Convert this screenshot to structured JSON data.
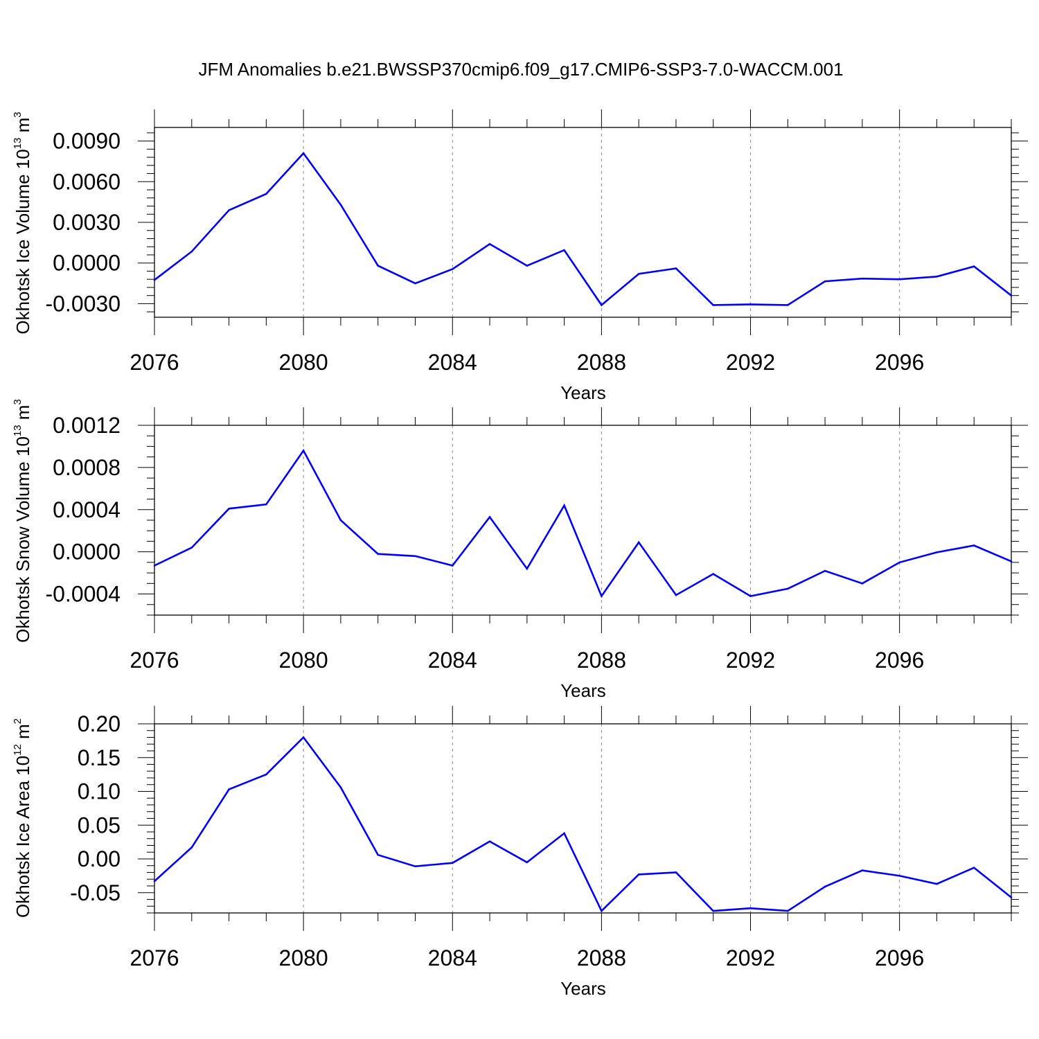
{
  "figure": {
    "title": "JFM Anomalies b.e21.BWSSP370cmip6.f09_g17.CMIP6-SSP3-7.0-WACCM.001"
  },
  "colors": {
    "line": "#0000ff",
    "axis": "#000000",
    "grid": "#888888",
    "background": "#ffffff"
  },
  "chart_data": [
    {
      "type": "line",
      "series_name": "Okhotsk Ice Volume",
      "ylabel_main": "Okhotsk Ice Volume 10",
      "ylabel_exp": "13",
      "ylabel_unit": " m",
      "ylabel_unit_exp": "3",
      "xlabel": "Years",
      "xlim": [
        2076,
        2099
      ],
      "ylim": [
        -0.004,
        0.01
      ],
      "xticks": [
        2076,
        2080,
        2084,
        2088,
        2092,
        2096
      ],
      "xtick_labels": [
        "2076",
        "2080",
        "2084",
        "2088",
        "2092",
        "2096"
      ],
      "yticks": [
        -0.003,
        0.0,
        0.003,
        0.006,
        0.009
      ],
      "ytick_labels": [
        "-0.0030",
        "0.0000",
        "0.0030",
        "0.0060",
        "0.0090"
      ],
      "yminor_step": 0.0006,
      "grid": "vertical-dashed",
      "x": [
        2076,
        2077,
        2078,
        2079,
        2080,
        2081,
        2082,
        2083,
        2084,
        2085,
        2086,
        2087,
        2088,
        2089,
        2090,
        2091,
        2092,
        2093,
        2094,
        2095,
        2096,
        2097,
        2098,
        2099
      ],
      "y": [
        -0.00125,
        0.00085,
        0.0039,
        0.0051,
        0.0081,
        0.0043,
        -0.0002,
        -0.0015,
        -0.00045,
        0.0014,
        -0.0002,
        0.00095,
        -0.0031,
        -0.0008,
        -0.0004,
        -0.0031,
        -0.00305,
        -0.0031,
        -0.00135,
        -0.00115,
        -0.0012,
        -0.001,
        -0.00025,
        -0.0024
      ]
    },
    {
      "type": "line",
      "series_name": "Okhotsk Snow Volume",
      "ylabel_main": "Okhotsk Snow Volume 10",
      "ylabel_exp": "13",
      "ylabel_unit": " m",
      "ylabel_unit_exp": "3",
      "xlabel": "Years",
      "xlim": [
        2076,
        2099
      ],
      "ylim": [
        -0.0006,
        0.0012
      ],
      "xticks": [
        2076,
        2080,
        2084,
        2088,
        2092,
        2096
      ],
      "xtick_labels": [
        "2076",
        "2080",
        "2084",
        "2088",
        "2092",
        "2096"
      ],
      "yticks": [
        -0.0004,
        0.0,
        0.0004,
        0.0008,
        0.0012
      ],
      "ytick_labels": [
        "-0.0004",
        "0.0000",
        "0.0004",
        "0.0008",
        "0.0012"
      ],
      "yminor_step": 0.0001,
      "grid": "vertical-dashed",
      "x": [
        2076,
        2077,
        2078,
        2079,
        2080,
        2081,
        2082,
        2083,
        2084,
        2085,
        2086,
        2087,
        2088,
        2089,
        2090,
        2091,
        2092,
        2093,
        2094,
        2095,
        2096,
        2097,
        2098,
        2099
      ],
      "y": [
        -0.00013,
        4e-05,
        0.00041,
        0.00045,
        0.00096,
        0.0003,
        -2e-05,
        -4e-05,
        -0.00013,
        0.00033,
        -0.00016,
        0.00044,
        -0.00042,
        9e-05,
        -0.00041,
        -0.00021,
        -0.00042,
        -0.00035,
        -0.00018,
        -0.0003,
        -0.0001,
        -5e-06,
        6e-05,
        -9e-05
      ]
    },
    {
      "type": "line",
      "series_name": "Okhotsk Ice Area",
      "ylabel_main": "Okhotsk Ice Area 10",
      "ylabel_exp": "12",
      "ylabel_unit": " m",
      "ylabel_unit_exp": "2",
      "xlabel": "Years",
      "xlim": [
        2076,
        2099
      ],
      "ylim": [
        -0.08,
        0.2
      ],
      "xticks": [
        2076,
        2080,
        2084,
        2088,
        2092,
        2096
      ],
      "xtick_labels": [
        "2076",
        "2080",
        "2084",
        "2088",
        "2092",
        "2096"
      ],
      "yticks": [
        -0.05,
        0.0,
        0.05,
        0.1,
        0.15,
        0.2
      ],
      "ytick_labels": [
        "-0.05",
        "0.00",
        "0.05",
        "0.10",
        "0.15",
        "0.20"
      ],
      "yminor_step": 0.01,
      "grid": "vertical-dashed",
      "x": [
        2076,
        2077,
        2078,
        2079,
        2080,
        2081,
        2082,
        2083,
        2084,
        2085,
        2086,
        2087,
        2088,
        2089,
        2090,
        2091,
        2092,
        2093,
        2094,
        2095,
        2096,
        2097,
        2098,
        2099
      ],
      "y": [
        -0.033,
        0.017,
        0.103,
        0.125,
        0.18,
        0.106,
        0.006,
        -0.011,
        -0.006,
        0.026,
        -0.005,
        0.038,
        -0.077,
        -0.023,
        -0.02,
        -0.077,
        -0.073,
        -0.077,
        -0.041,
        -0.017,
        -0.025,
        -0.037,
        -0.013,
        -0.057
      ]
    }
  ]
}
